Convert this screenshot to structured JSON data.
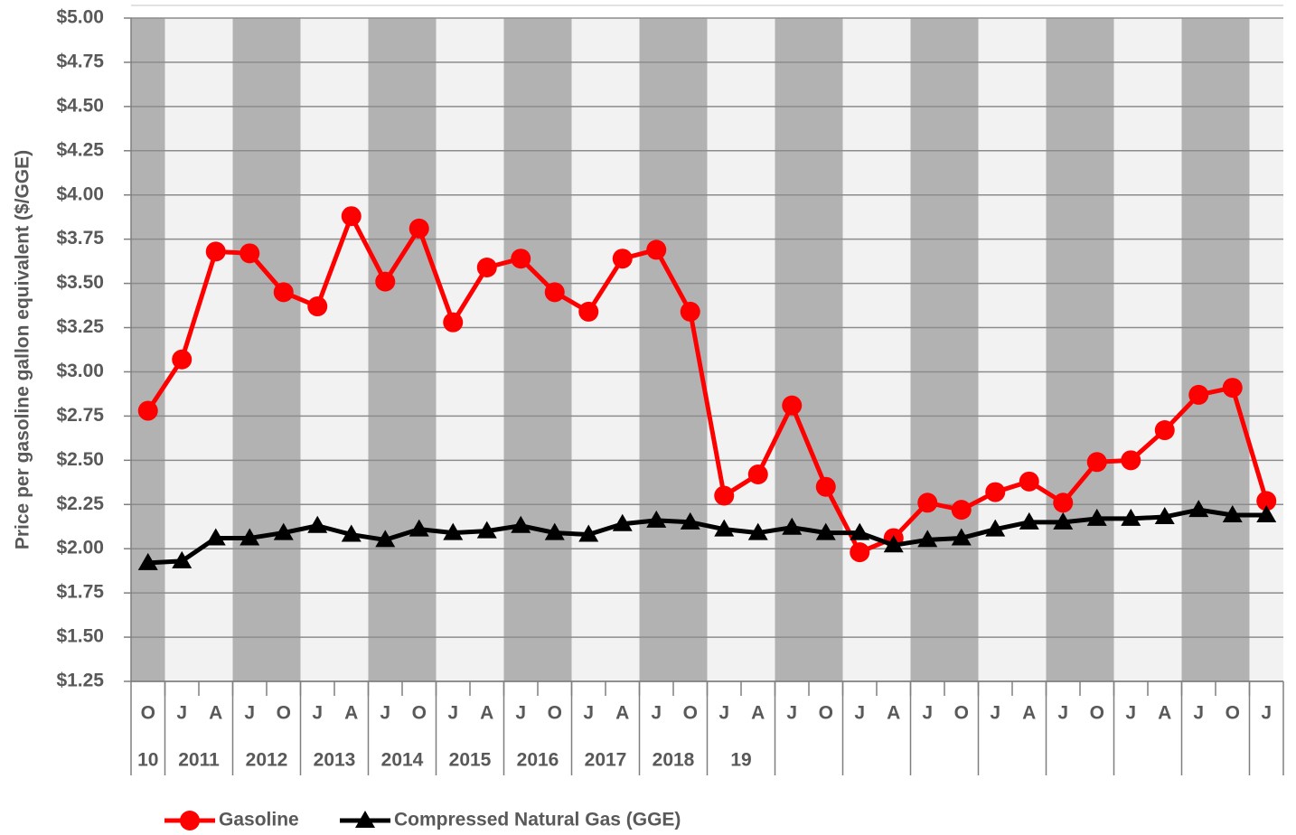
{
  "chart_data": {
    "type": "line",
    "y_axis_label": "Price per gasoline gallon equivalent ($/GGE)",
    "categories": [
      "O",
      "J",
      "A",
      "J",
      "O",
      "J",
      "A",
      "J",
      "O",
      "J",
      "A",
      "J",
      "O",
      "J",
      "A",
      "J",
      "O",
      "J",
      "A",
      "J",
      "O",
      "J",
      "A",
      "J",
      "O",
      "J",
      "A",
      "J",
      "O",
      "J",
      "A",
      "J",
      "O",
      "J"
    ],
    "year_labels": [
      "10",
      "2011",
      "2012",
      "2013",
      "2014",
      "2015",
      "2016",
      "2017",
      "2018",
      "19"
    ],
    "shading_colors": [
      "#b2b2b2",
      "#f2f2f2"
    ],
    "series": [
      {
        "name": "Gasoline",
        "color": "#ff0000",
        "marker": "circle",
        "values": [
          2.78,
          3.07,
          3.68,
          3.67,
          3.45,
          3.37,
          3.88,
          3.51,
          3.81,
          3.28,
          3.59,
          3.64,
          3.45,
          3.34,
          3.64,
          3.69,
          3.34,
          2.3,
          2.42,
          2.81,
          2.35,
          1.98,
          2.06,
          2.26,
          2.22,
          2.32,
          2.38,
          2.26,
          2.49,
          2.5,
          2.67,
          2.87,
          2.91,
          2.27
        ]
      },
      {
        "name": "Compressed Natural Gas (GGE)",
        "color": "#000000",
        "marker": "triangle",
        "values": [
          1.92,
          1.93,
          2.06,
          2.06,
          2.09,
          2.13,
          2.08,
          2.05,
          2.11,
          2.09,
          2.1,
          2.13,
          2.09,
          2.08,
          2.14,
          2.16,
          2.15,
          2.11,
          2.09,
          2.12,
          2.09,
          2.09,
          2.02,
          2.05,
          2.06,
          2.11,
          2.15,
          2.15,
          2.17,
          2.17,
          2.18,
          2.22,
          2.19,
          2.19
        ]
      }
    ],
    "ylim": [
      1.25,
      5.0
    ],
    "yticks": [
      {
        "value": 1.25,
        "label": "$1.25"
      },
      {
        "value": 1.5,
        "label": "$1.50"
      },
      {
        "value": 1.75,
        "label": "$1.75"
      },
      {
        "value": 2.0,
        "label": "$2.00"
      },
      {
        "value": 2.25,
        "label": "$2.25"
      },
      {
        "value": 2.5,
        "label": "$2.50"
      },
      {
        "value": 2.75,
        "label": "$2.75"
      },
      {
        "value": 3.0,
        "label": "$3.00"
      },
      {
        "value": 3.25,
        "label": "$3.25"
      },
      {
        "value": 3.5,
        "label": "$3.50"
      },
      {
        "value": 3.75,
        "label": "$3.75"
      },
      {
        "value": 4.0,
        "label": "$4.00"
      },
      {
        "value": 4.25,
        "label": "$4.25"
      },
      {
        "value": 4.5,
        "label": "$4.50"
      },
      {
        "value": 4.75,
        "label": "$4.75"
      },
      {
        "value": 5.0,
        "label": "$5.00"
      }
    ],
    "grid": true
  }
}
